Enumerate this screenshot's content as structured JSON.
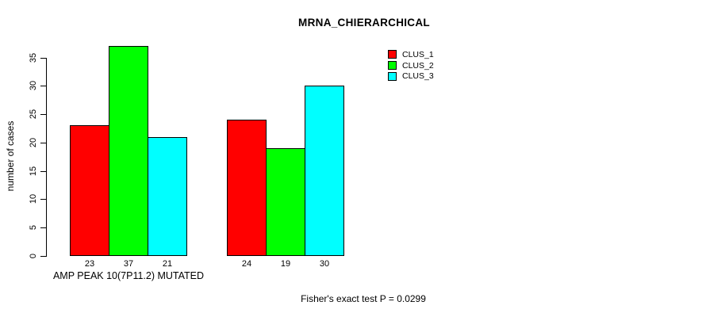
{
  "chart_data": {
    "type": "bar",
    "title": "MRNA_CHIERARCHICAL",
    "ylabel": "number of cases",
    "xlabel": "AMP PEAK 10(7P11.2) MUTATED",
    "categories": [
      "AMP PEAK 10(7P11.2) MUTATED",
      ""
    ],
    "series": [
      {
        "name": "CLUS_1",
        "color": "#ff0000",
        "values": [
          23,
          24
        ]
      },
      {
        "name": "CLUS_2",
        "color": "#00ff00",
        "values": [
          37,
          19
        ]
      },
      {
        "name": "CLUS_3",
        "color": "#00ffff",
        "values": [
          21,
          30
        ]
      }
    ],
    "y_ticks": [
      0,
      5,
      10,
      15,
      20,
      25,
      30,
      35
    ],
    "ylim": [
      0,
      37
    ],
    "grid": false,
    "legend_position": "top-right",
    "legend_entries": [
      "CLUS_1",
      "CLUS_2",
      "CLUS_3"
    ],
    "annotation": "Fisher's exact test P = 0.0299"
  }
}
